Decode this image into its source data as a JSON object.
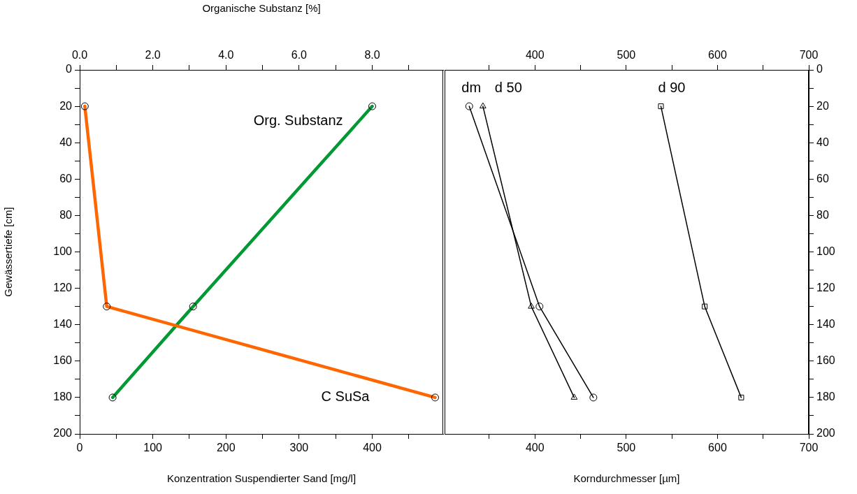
{
  "chart_data": [
    {
      "type": "line",
      "xlabel": "Konzentration Suspendierter Sand [mg/l]",
      "x2label": "Organische Substanz [%]",
      "ylabel": "Gewässertiefe [cm]",
      "marker": "circle",
      "line_style": "solid",
      "xlim": [
        0,
        497
      ],
      "xticks": [
        0,
        {
          "value": 50,
          "label": null
        },
        100,
        {
          "value": 150,
          "label": null
        },
        200,
        {
          "value": 250,
          "label": null
        },
        300,
        {
          "value": 350,
          "label": null
        },
        400,
        {
          "value": 450,
          "label": null
        }
      ],
      "x2lim": [
        0,
        9.94
      ],
      "x2ticks": [
        {
          "value": 0,
          "label": "0.0"
        },
        {
          "value": 1,
          "label": null
        },
        {
          "value": 2,
          "label": "2.0"
        },
        {
          "value": 3,
          "label": null
        },
        {
          "value": 4,
          "label": "4.0"
        },
        {
          "value": 5,
          "label": null
        },
        {
          "value": 6,
          "label": "6.0"
        },
        {
          "value": 7,
          "label": null
        },
        {
          "value": 8,
          "label": "8.0"
        },
        {
          "value": 9,
          "label": null
        }
      ],
      "ylim": [
        200,
        0
      ],
      "yticks": [
        0,
        {
          "value": 10,
          "label": null
        },
        20,
        {
          "value": 30,
          "label": null
        },
        40,
        {
          "value": 50,
          "label": null
        },
        60,
        {
          "value": 70,
          "label": null
        },
        80,
        {
          "value": 90,
          "label": null
        },
        100,
        {
          "value": 110,
          "label": null
        },
        120,
        {
          "value": 130,
          "label": null
        },
        140,
        {
          "value": 150,
          "label": null
        },
        160,
        {
          "value": 170,
          "label": null
        },
        180,
        {
          "value": 190,
          "label": null
        },
        200
      ],
      "series": [
        {
          "name": "C SuSa",
          "color": "#ff6600",
          "x": [
            7,
            37,
            486
          ],
          "values": [
            20,
            130,
            180
          ]
        },
        {
          "name": "Org. Substanz",
          "color": "#009933",
          "axis": "x2",
          "x": [
            8.0,
            3.1,
            0.9
          ],
          "values": [
            20,
            130,
            180
          ]
        }
      ]
    },
    {
      "type": "line",
      "xlabel": "Korndurchmesser [µm]",
      "line_style": "solid",
      "xlim": [
        301,
        700
      ],
      "xticks": [
        {
          "value": 350,
          "label": null
        },
        400,
        {
          "value": 450,
          "label": null
        },
        500,
        {
          "value": 550,
          "label": null
        },
        600,
        {
          "value": 650,
          "label": null
        },
        700
      ],
      "x2lim": [
        301,
        700
      ],
      "x2ticks": [
        {
          "value": 350,
          "label": null
        },
        400,
        {
          "value": 450,
          "label": null
        },
        500,
        {
          "value": 550,
          "label": null
        },
        600,
        {
          "value": 650,
          "label": null
        },
        700
      ],
      "ylim": [
        200,
        0
      ],
      "yticks": [
        0,
        {
          "value": 10,
          "label": null
        },
        20,
        {
          "value": 30,
          "label": null
        },
        40,
        {
          "value": 50,
          "label": null
        },
        60,
        {
          "value": 70,
          "label": null
        },
        80,
        {
          "value": 90,
          "label": null
        },
        100,
        {
          "value": 110,
          "label": null
        },
        120,
        {
          "value": 130,
          "label": null
        },
        140,
        {
          "value": 150,
          "label": null
        },
        160,
        {
          "value": 170,
          "label": null
        },
        180,
        {
          "value": 190,
          "label": null
        },
        200
      ],
      "series": [
        {
          "name": "dm",
          "color": "#000000",
          "marker": "circle",
          "x": [
            328,
            405,
            464
          ],
          "values": [
            20,
            130,
            180
          ]
        },
        {
          "name": "d 50",
          "color": "#000000",
          "marker": "triangle",
          "x": [
            343,
            396,
            443
          ],
          "values": [
            20,
            130,
            180
          ]
        },
        {
          "name": "d 90",
          "color": "#000000",
          "marker": "square",
          "x": [
            538,
            586,
            626
          ],
          "values": [
            20,
            130,
            180
          ]
        }
      ]
    }
  ]
}
